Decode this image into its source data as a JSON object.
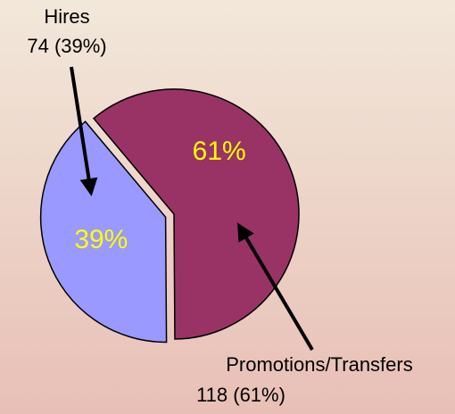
{
  "chart_data": {
    "type": "pie",
    "categories": [
      "Hires",
      "Promotions/Transfers"
    ],
    "values": [
      39,
      61
    ],
    "value_labels": [
      "39%",
      "61%"
    ],
    "colors": [
      "#9999ff",
      "#993366"
    ],
    "annotations": [
      {
        "lines": [
          "Hires",
          "74 (39%)"
        ]
      },
      {
        "lines": [
          "Promotions/Transfers",
          "118 (61%)"
        ]
      }
    ]
  }
}
